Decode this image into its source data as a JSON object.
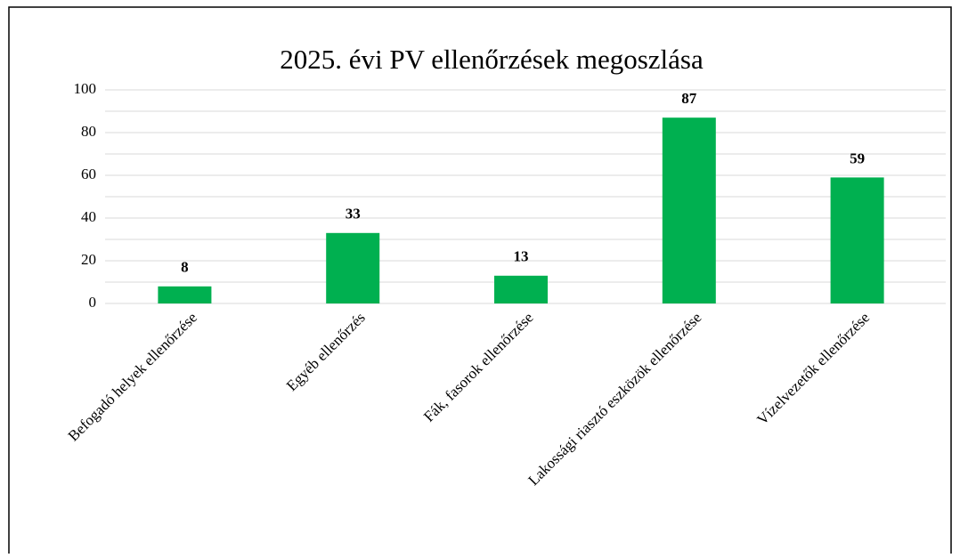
{
  "chart_data": {
    "type": "bar",
    "title": "2025. évi PV ellenőrzések megoszlása",
    "categories": [
      "Befogadó helyek ellenőrzése",
      "Egyéb ellenőrzés",
      "Fák, fasorok ellenőrzése",
      "Lakossági riasztó eszközök ellenőrzése",
      "Vízelvezetők ellenőrzése"
    ],
    "values": [
      8,
      33,
      13,
      87,
      59
    ],
    "color": "#00b050",
    "ylim": [
      0,
      100
    ],
    "yticks": [
      0,
      20,
      40,
      60,
      80,
      100
    ],
    "minor_yticks": [
      10,
      30,
      50,
      70,
      90
    ],
    "grid": true
  }
}
